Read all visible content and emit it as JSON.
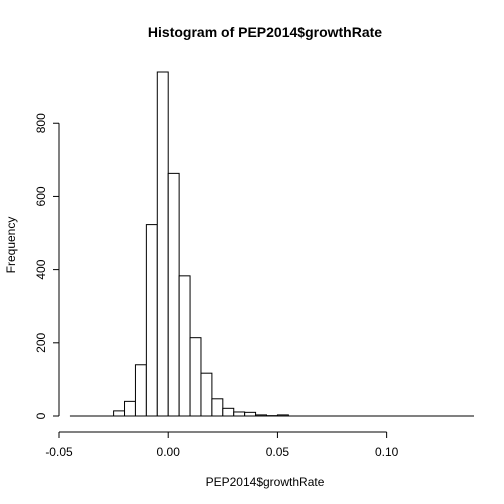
{
  "chart_data": {
    "type": "bar",
    "title": "Histogram of PEP2014$growthRate",
    "xlabel": "PEP2014$growthRate",
    "ylabel": "Frequency",
    "xlim": [
      -0.05,
      0.14
    ],
    "ylim": [
      0,
      940
    ],
    "x_ticks": [
      -0.05,
      0.0,
      0.05,
      0.1
    ],
    "x_tick_labels": [
      "-0.05",
      "0.00",
      "0.05",
      "0.10"
    ],
    "y_ticks": [
      0,
      200,
      400,
      600,
      800
    ],
    "y_tick_labels": [
      "0",
      "200",
      "400",
      "600",
      "800"
    ],
    "bin_width": 0.005,
    "bins": [
      {
        "start": -0.045,
        "end": -0.04,
        "count": 0
      },
      {
        "start": -0.04,
        "end": -0.035,
        "count": 0
      },
      {
        "start": -0.035,
        "end": -0.03,
        "count": 0
      },
      {
        "start": -0.03,
        "end": -0.025,
        "count": 0
      },
      {
        "start": -0.025,
        "end": -0.02,
        "count": 14
      },
      {
        "start": -0.02,
        "end": -0.015,
        "count": 40
      },
      {
        "start": -0.015,
        "end": -0.01,
        "count": 140
      },
      {
        "start": -0.01,
        "end": -0.005,
        "count": 523
      },
      {
        "start": -0.005,
        "end": 0.0,
        "count": 940
      },
      {
        "start": 0.0,
        "end": 0.005,
        "count": 663
      },
      {
        "start": 0.005,
        "end": 0.01,
        "count": 383
      },
      {
        "start": 0.01,
        "end": 0.015,
        "count": 214
      },
      {
        "start": 0.015,
        "end": 0.02,
        "count": 117
      },
      {
        "start": 0.02,
        "end": 0.025,
        "count": 47
      },
      {
        "start": 0.025,
        "end": 0.03,
        "count": 21
      },
      {
        "start": 0.03,
        "end": 0.035,
        "count": 11
      },
      {
        "start": 0.035,
        "end": 0.04,
        "count": 10
      },
      {
        "start": 0.04,
        "end": 0.045,
        "count": 3
      },
      {
        "start": 0.045,
        "end": 0.05,
        "count": 1
      },
      {
        "start": 0.05,
        "end": 0.055,
        "count": 3
      },
      {
        "start": 0.055,
        "end": 0.06,
        "count": 0
      },
      {
        "start": 0.06,
        "end": 0.065,
        "count": 0
      },
      {
        "start": 0.065,
        "end": 0.07,
        "count": 0
      },
      {
        "start": 0.07,
        "end": 0.075,
        "count": 0
      },
      {
        "start": 0.075,
        "end": 0.08,
        "count": 0
      },
      {
        "start": 0.08,
        "end": 0.085,
        "count": 0
      },
      {
        "start": 0.085,
        "end": 0.09,
        "count": 0
      },
      {
        "start": 0.09,
        "end": 0.095,
        "count": 0
      },
      {
        "start": 0.095,
        "end": 0.1,
        "count": 0
      },
      {
        "start": 0.1,
        "end": 0.105,
        "count": 0
      },
      {
        "start": 0.105,
        "end": 0.11,
        "count": 0
      },
      {
        "start": 0.11,
        "end": 0.115,
        "count": 0
      },
      {
        "start": 0.115,
        "end": 0.12,
        "count": 0
      },
      {
        "start": 0.12,
        "end": 0.125,
        "count": 0
      },
      {
        "start": 0.125,
        "end": 0.13,
        "count": 0
      },
      {
        "start": 0.13,
        "end": 0.135,
        "count": 0
      },
      {
        "start": 0.135,
        "end": 0.14,
        "count": 0
      }
    ],
    "grid": false,
    "legend": "none",
    "colors": {
      "bar_fill": "#ffffff",
      "bar_stroke": "#000000"
    }
  }
}
